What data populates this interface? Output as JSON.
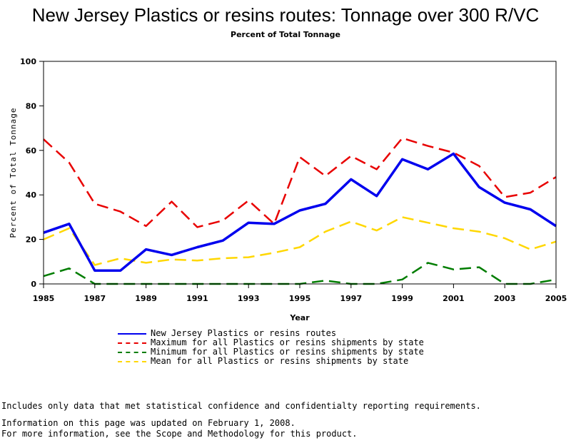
{
  "chart_data": {
    "type": "line",
    "title": "New Jersey Plastics or resins routes: Tonnage over 300 R/VC",
    "subtitle": "Percent of Total Tonnage",
    "xlabel": "Year",
    "ylabel": "Percent of Total Tonnage",
    "xlim": [
      1985,
      2005
    ],
    "ylim": [
      0,
      100
    ],
    "x_ticks": [
      "1985",
      "1987",
      "1989",
      "1991",
      "1993",
      "1995",
      "1997",
      "1999",
      "2001",
      "2003",
      "2005"
    ],
    "y_ticks": [
      "0",
      "20",
      "40",
      "60",
      "80",
      "100"
    ],
    "x": [
      1985,
      1986,
      1987,
      1988,
      1989,
      1990,
      1991,
      1992,
      1993,
      1994,
      1995,
      1996,
      1997,
      1998,
      1999,
      2000,
      2001,
      2002,
      2003,
      2004,
      2005
    ],
    "series": [
      {
        "name": "New Jersey Plastics or resins routes",
        "color": "#0000ee",
        "style": "solid",
        "values": [
          23,
          27,
          6,
          6,
          15.5,
          13,
          16.5,
          19.5,
          27.5,
          27,
          33,
          36,
          47,
          39.5,
          56,
          51.5,
          58.5,
          43.5,
          36.5,
          33.5,
          26
        ]
      },
      {
        "name": "Maximum for all Plastics or resins shipments by state",
        "color": "#e80000",
        "style": "dashed",
        "values": [
          65,
          54.5,
          36,
          32.5,
          26,
          37,
          25.5,
          28.5,
          37.5,
          27,
          57,
          48.5,
          57.5,
          51.5,
          65.5,
          62,
          59,
          53,
          39,
          41,
          48
        ]
      },
      {
        "name": "Minimum for all Plastics or resins shipments by state",
        "color": "#007d00",
        "style": "dashed",
        "values": [
          3.5,
          7,
          0,
          0,
          0,
          0,
          0,
          0,
          0,
          0,
          0,
          1.5,
          0,
          0,
          2,
          9.5,
          6.5,
          7.5,
          0,
          0,
          2
        ]
      },
      {
        "name": "Mean for all Plastics or resins shipments by state",
        "color": "#ffd700",
        "style": "dashed",
        "values": [
          20,
          25,
          8.5,
          11.5,
          9.5,
          11,
          10.5,
          11.5,
          12,
          14,
          16.5,
          23.5,
          28,
          24,
          30,
          27.5,
          25,
          23.5,
          20.5,
          15.5,
          19
        ]
      }
    ],
    "legend_placement": "bottom"
  },
  "footnote_lines": [
    "Includes only data that met statistical confidence and confidentialty reporting requirements.",
    "For more information, see the Scope and Methodology for this product."
  ],
  "updated_text": "Information on this page was updated on February 1, 2008."
}
